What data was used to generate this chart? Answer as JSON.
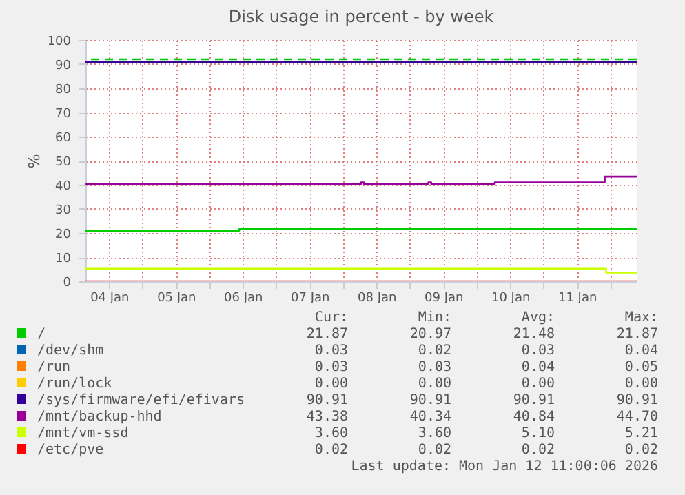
{
  "chart_data": {
    "type": "step",
    "title": "Disk usage in percent - by week",
    "ylabel": "%",
    "xlim": [
      "2026-01-04T03:30",
      "2026-01-12T09:30"
    ],
    "xticks": [
      {
        "value": "2026-01-04T12:00",
        "label": "04 Jan"
      },
      {
        "value": "2026-01-05T00:00",
        "label": null
      },
      {
        "value": "2026-01-05T12:00",
        "label": "05 Jan"
      },
      {
        "value": "2026-01-06T00:00",
        "label": null
      },
      {
        "value": "2026-01-06T12:00",
        "label": "06 Jan"
      },
      {
        "value": "2026-01-07T00:00",
        "label": null
      },
      {
        "value": "2026-01-07T12:00",
        "label": "07 Jan"
      },
      {
        "value": "2026-01-08T00:00",
        "label": null
      },
      {
        "value": "2026-01-08T12:00",
        "label": "08 Jan"
      },
      {
        "value": "2026-01-09T00:00",
        "label": null
      },
      {
        "value": "2026-01-09T12:00",
        "label": "09 Jan"
      },
      {
        "value": "2026-01-10T00:00",
        "label": null
      },
      {
        "value": "2026-01-10T12:00",
        "label": "10 Jan"
      },
      {
        "value": "2026-01-11T00:00",
        "label": null
      },
      {
        "value": "2026-01-11T12:00",
        "label": "11 Jan"
      },
      {
        "value": "2026-01-12T00:00",
        "label": null
      }
    ],
    "ylim": [
      0,
      100
    ],
    "yticks": [
      0,
      10,
      20,
      30,
      40,
      50,
      60,
      70,
      80,
      90,
      100
    ],
    "grid": true,
    "legend": "bottom",
    "series": [
      {
        "name": "/",
        "color": "#00cc00",
        "x": [
          "2026-01-04T03:30",
          "2026-01-06T10:45",
          "2026-01-09T00:00",
          "2026-01-12T09:30"
        ],
        "values": [
          20.97,
          21.6,
          21.7,
          21.87
        ]
      },
      {
        "name": "/dev/shm",
        "color": "#0066b3",
        "values": [
          null,
          null
        ]
      },
      {
        "name": "/run",
        "color": "#ff8000",
        "values": [
          null,
          null
        ]
      },
      {
        "name": "/run/lock",
        "color": "#ffcc00",
        "values": [
          null,
          null
        ]
      },
      {
        "name": "/sys/firmware/efi/efivars",
        "color": "#330099",
        "x": [
          "2026-01-04T03:30",
          "2026-01-12T09:30"
        ],
        "values": [
          90.91,
          90.91
        ]
      },
      {
        "name": "/mnt/backup-hhd",
        "color": "#990099",
        "x": [
          "2026-01-04T03:30",
          "2026-01-08T06:30",
          "2026-01-08T07:30",
          "2026-01-09T06:40",
          "2026-01-09T07:40",
          "2026-01-10T06:30",
          "2026-01-11T22:00",
          "2026-01-12T09:30"
        ],
        "values": [
          40.34,
          41,
          40.34,
          41,
          40.34,
          41,
          43.38,
          43.38
        ]
      },
      {
        "name": "/mnt/vm-ssd",
        "color": "#ccff00",
        "x": [
          "2026-01-04T03:30",
          "2026-01-11T22:30",
          "2026-01-12T09:30"
        ],
        "values": [
          5.21,
          3.6,
          3.6
        ]
      },
      {
        "name": "/etc/pve",
        "color": "#ff0000",
        "x": [
          "2026-01-04T03:30",
          "2026-01-12T09:30"
        ],
        "values": [
          0.02,
          0.02
        ]
      }
    ],
    "ref_lines": [
      {
        "axis": "y",
        "value": 92,
        "color": "#00cc00",
        "line_style": "dashed"
      }
    ],
    "annotations": [
      "Cur:",
      "Min:",
      "Avg:",
      "Max:",
      "21.87",
      "20.97",
      "21.48",
      "21.87",
      "0.03",
      "0.02",
      "0.03",
      "0.04",
      "0.03",
      "0.03",
      "0.04",
      "0.05",
      "0.00",
      "0.00",
      "0.00",
      "0.00",
      "90.91",
      "90.91",
      "90.91",
      "90.91",
      "43.38",
      "40.34",
      "40.84",
      "44.70",
      "3.60",
      "3.60",
      "5.10",
      "5.21",
      "0.02",
      "0.02",
      "0.02",
      "0.02",
      "Last update: Mon Jan 12 11:00:06 2026"
    ]
  }
}
